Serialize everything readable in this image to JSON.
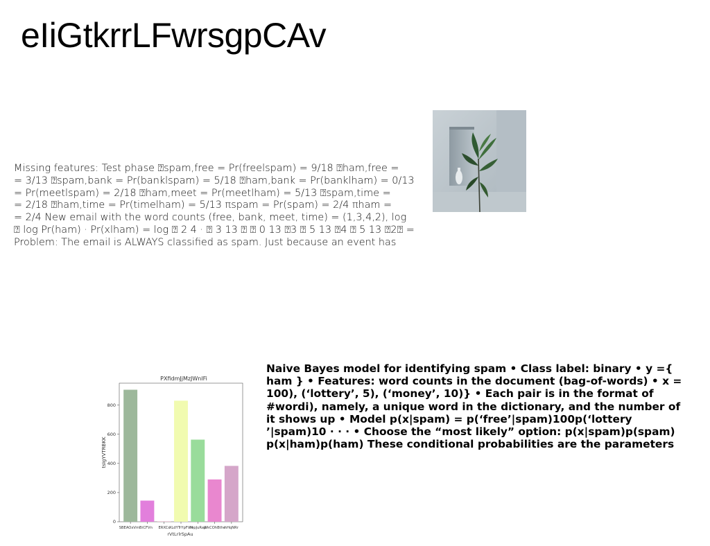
{
  "page": {
    "title": "eIiGtkrrLFwrsgpCAv"
  },
  "paragraph_1": {
    "lines": [
      "Missing features: Test phase ⍰spam,free = Pr(freelspam) = 9/18 ⍰ham,free =",
      "= 3/13 ⍰spam,bank = Pr(banklspam) = 5/18 ⍰ham,bank = Pr(banklham) = 0/13",
      "= Pr(meetlspam) = 2/18 ⍰ham,meet = Pr(meetlham) = 5/13 ⍰spam,time =",
      "= 2/18 ⍰ham,time = Pr(timelham) = 5/13 πspam = Pr(spam) = 2/4 πham =",
      "= 2/4 New email with the word counts (free, bank, meet, time) = (1,3,4,2), log",
      "⍰ log Pr(ham) · Pr(xlham) = log ⍰ 2 4 · ⍰ 3 13 ⍰ ⍰ 0 13 ⍰3 ⍰ 5 13 ⍰4 ⍰ 5 13 ⍰2⍰ =",
      "Problem: The email is ALWAYS classified as spam. Just because an event has"
    ]
  },
  "image": {
    "icon": "plant-vase-photo"
  },
  "chart_data": {
    "type": "bar",
    "title": "PXfidmJjMzJWnlFi",
    "xlabel": "rVtLrlrSpAu",
    "ylabel": "tsIgYVTRBKK",
    "categories": [
      "SBEAOxVmB",
      "iCFVn",
      "ERXCs",
      "XLdYTrYpFVH",
      "llepJuRap",
      "WkCOhBthe",
      "hHqNRr"
    ],
    "values": [
      905,
      145,
      5,
      830,
      563,
      290,
      383
    ],
    "colors": [
      "#9db89b",
      "#e27fdc",
      "#f4d4e0",
      "#f1fbb0",
      "#99dc9b",
      "#e987cf",
      "#d5a6c9"
    ],
    "ylim": [
      0,
      950
    ],
    "yticks": [
      0,
      200,
      400,
      600,
      800
    ],
    "grid": false
  },
  "paragraph_2": {
    "lines": [
      "Naive Bayes model for identifying spam • Class label: binary • y ={",
      "ham } • Features: word counts in the document (bag-of-words) • x =",
      "100), (‘lottery’, 5), (‘money’, 10)} • Each pair is in the format of",
      "#wordi), namely, a unique word in the dictionary, and the number of",
      "it shows up • Model p(x|spam) = p(‘free’|spam)100p(‘lottery",
      "’|spam)10 · · · • Choose the “most likely” option: p(x|spam)p(spam)",
      "p(x|ham)p(ham) These conditional probabilities are the parameters"
    ]
  }
}
